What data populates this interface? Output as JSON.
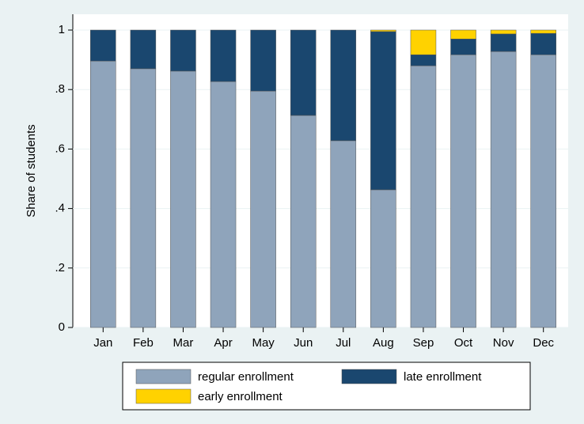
{
  "chart_data": {
    "type": "stacked_bar",
    "y_label": "Share of students",
    "categories": [
      "Jan",
      "Feb",
      "Mar",
      "Apr",
      "May",
      "Jun",
      "Jul",
      "Aug",
      "Sep",
      "Oct",
      "Nov",
      "Dec"
    ],
    "series": [
      {
        "name": "regular enrollment",
        "color": "#8fa4bb",
        "values": [
          0.896,
          0.87,
          0.862,
          0.827,
          0.795,
          0.713,
          0.628,
          0.463,
          0.88,
          0.917,
          0.928,
          0.917
        ]
      },
      {
        "name": "late enrollment",
        "color": "#1a476f",
        "values": [
          0.104,
          0.13,
          0.138,
          0.173,
          0.205,
          0.287,
          0.372,
          0.532,
          0.037,
          0.053,
          0.059,
          0.072
        ]
      },
      {
        "name": "early enrollment",
        "color": "#ffd200",
        "values": [
          0,
          0,
          0,
          0,
          0,
          0,
          0,
          0.005,
          0.083,
          0.03,
          0.013,
          0.011
        ]
      }
    ],
    "ylim": [
      0,
      1
    ],
    "yticks": [
      0,
      {
        "value": 0.2,
        "label": ".2"
      },
      {
        "value": 0.4,
        "label": ".4"
      },
      {
        "value": 0.6,
        "label": ".6"
      },
      {
        "value": 0.8,
        "label": ".8"
      },
      1
    ],
    "grid": true
  }
}
